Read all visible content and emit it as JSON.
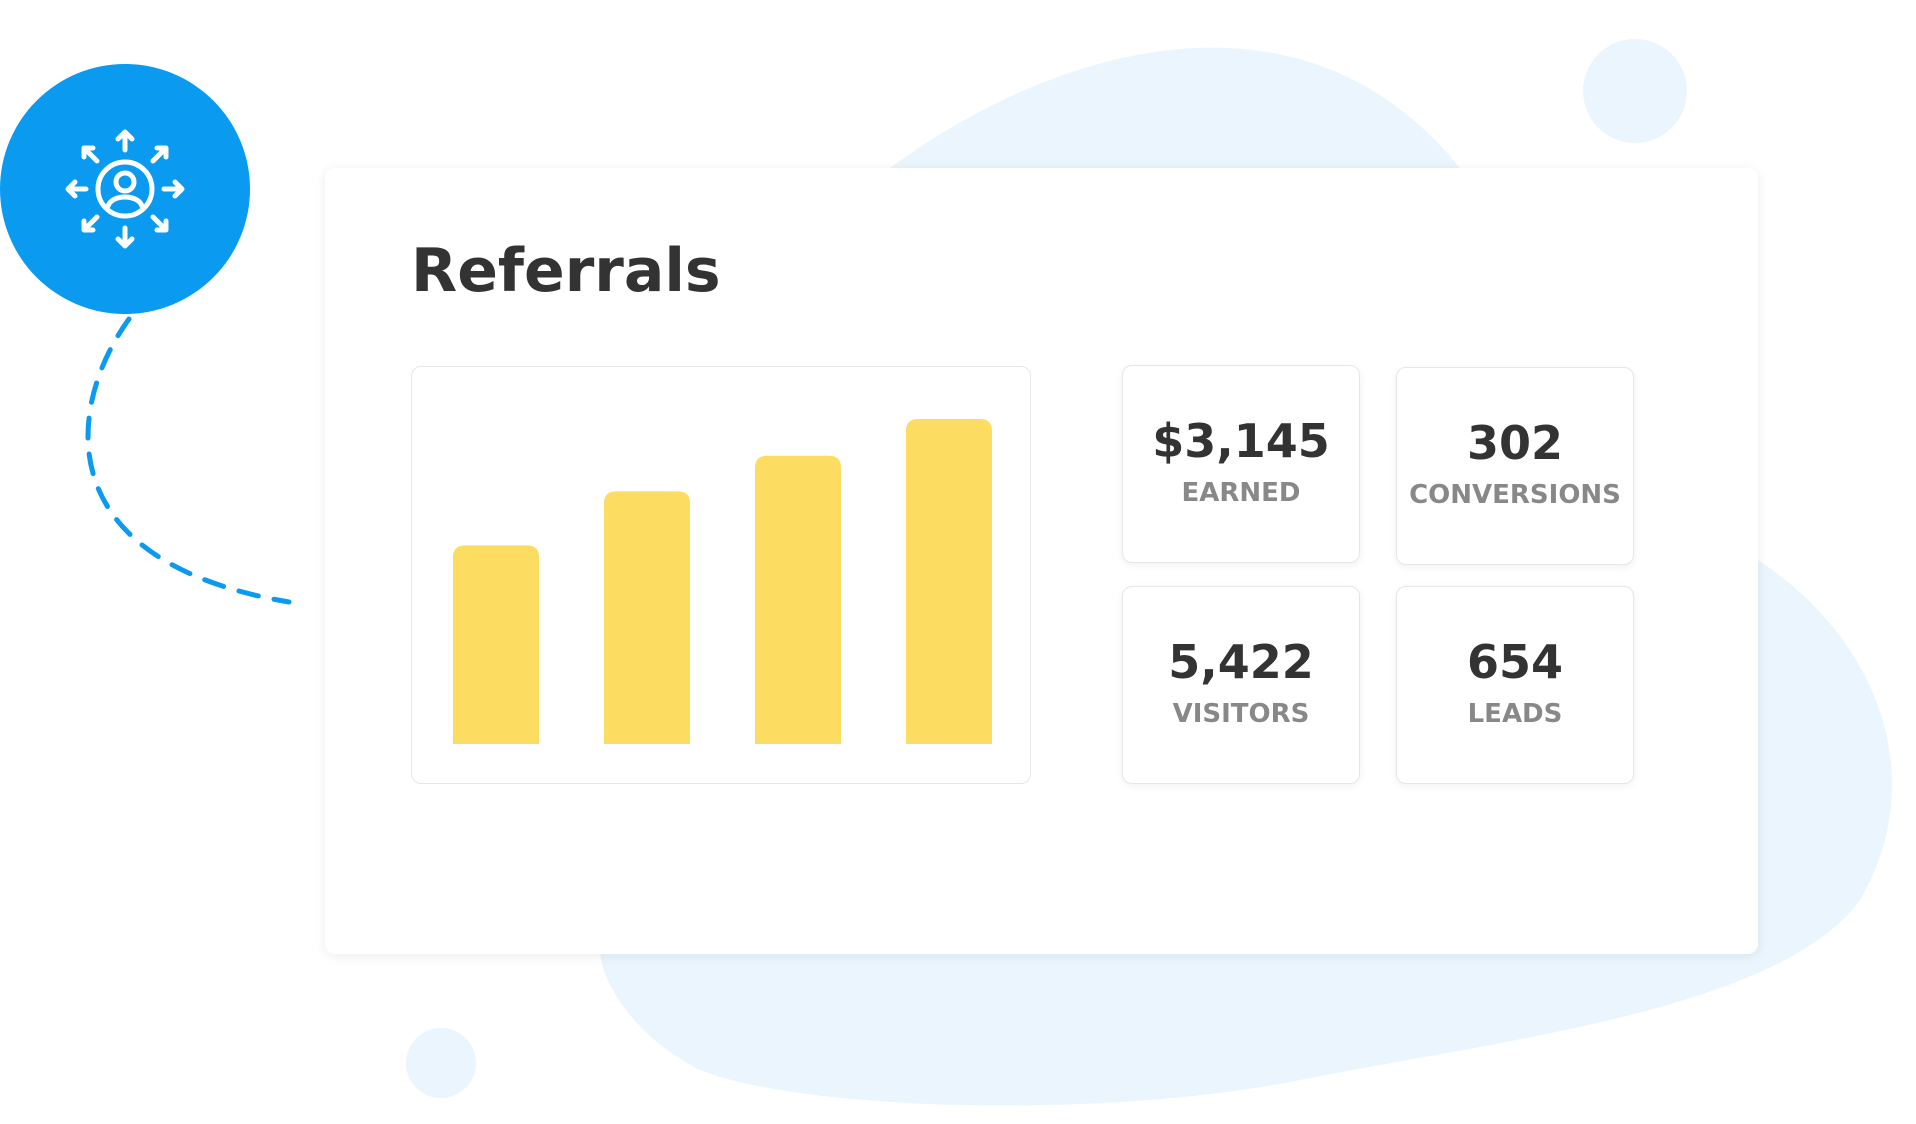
{
  "header": {
    "title": "Referrals"
  },
  "chart_data": {
    "type": "bar",
    "values": [
      162,
      206,
      235,
      265
    ],
    "color": "#fddc62"
  },
  "stats": [
    {
      "value": "$3,145",
      "label": "EARNED"
    },
    {
      "value": "302",
      "label": "CONVERSIONS"
    },
    {
      "value": "5,422",
      "label": "VISITORS"
    },
    {
      "value": "654",
      "label": "LEADS"
    }
  ]
}
